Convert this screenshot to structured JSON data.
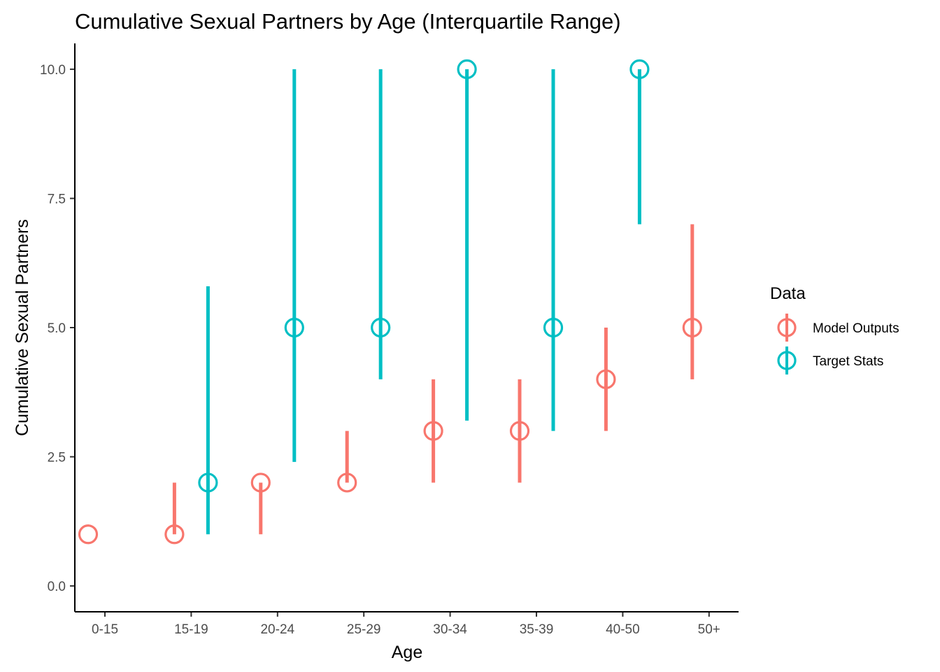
{
  "chart_data": {
    "type": "scatter",
    "title": "Cumulative Sexual Partners by Age (Interquartile Range)",
    "xlabel": "Age",
    "ylabel": "Cumulative Sexual Partners",
    "categories": [
      "0-15",
      "15-19",
      "20-24",
      "25-29",
      "30-34",
      "35-39",
      "40-50",
      "50+"
    ],
    "ylim": [
      -0.5,
      10.5
    ],
    "yticks": [
      0,
      2.5,
      5,
      7.5,
      10
    ],
    "ytick_labels": [
      "0.0",
      "2.5",
      "5.0",
      "7.5",
      "10.0"
    ],
    "grid": false,
    "legend": {
      "title": "Data",
      "placement": "right"
    },
    "series": [
      {
        "name": "Model Outputs",
        "color": "#F8766D",
        "points": [
          {
            "category": "0-15",
            "median": 1,
            "q1": 1,
            "q3": 1
          },
          {
            "category": "15-19",
            "median": 1,
            "q1": 1,
            "q3": 2
          },
          {
            "category": "20-24",
            "median": 2,
            "q1": 1,
            "q3": 2
          },
          {
            "category": "25-29",
            "median": 2,
            "q1": 2,
            "q3": 3
          },
          {
            "category": "30-34",
            "median": 3,
            "q1": 2,
            "q3": 4
          },
          {
            "category": "35-39",
            "median": 3,
            "q1": 2,
            "q3": 4
          },
          {
            "category": "40-50",
            "median": 4,
            "q1": 3,
            "q3": 5
          },
          {
            "category": "50+",
            "median": 5,
            "q1": 4,
            "q3": 7
          }
        ]
      },
      {
        "name": "Target Stats",
        "color": "#00BFC4",
        "points": [
          {
            "category": "15-19",
            "median": 2,
            "q1": 1,
            "q3": 5.8
          },
          {
            "category": "20-24",
            "median": 5,
            "q1": 2.4,
            "q3": 10
          },
          {
            "category": "25-29",
            "median": 5,
            "q1": 4,
            "q3": 10
          },
          {
            "category": "30-34",
            "median": 10,
            "q1": 3.2,
            "q3": 10
          },
          {
            "category": "35-39",
            "median": 5,
            "q1": 3,
            "q3": 10
          },
          {
            "category": "40-50",
            "median": 10,
            "q1": 7,
            "q3": 10
          }
        ]
      }
    ]
  }
}
